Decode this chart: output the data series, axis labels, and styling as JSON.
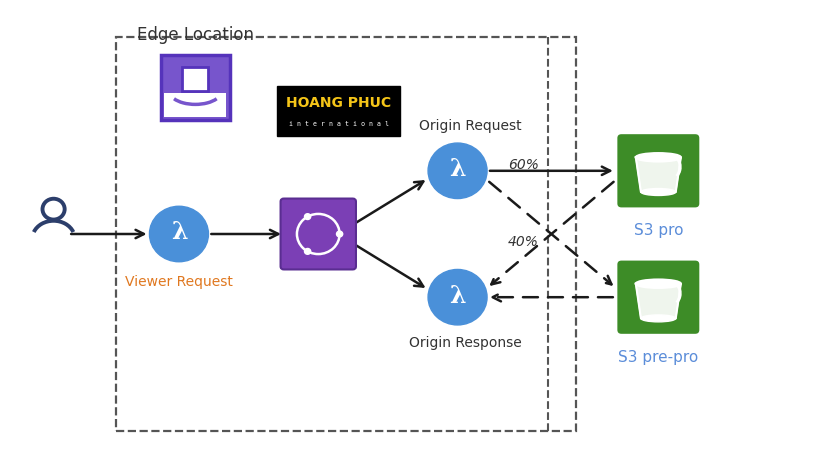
{
  "bg_color": "#ffffff",
  "fig_width": 8.25,
  "fig_height": 4.68,
  "dpi": 100,
  "edge_location_label": "Edge Location",
  "viewer_request_label": "Viewer Request",
  "origin_request_label": "Origin Request",
  "origin_response_label": "Origin Response",
  "s3_pro_label": "S3 pro",
  "s3_prepro_label": "S3 pre-pro",
  "pct_60": "60%",
  "pct_40": "40%",
  "hoang_phuc_line1": "HOANG PHUC",
  "hoang_phuc_line2": "i n t e r n a t i o n a l",
  "lambda_color": "#4a90d9",
  "s3_green": "#3d8c27",
  "cloudfront_purple": "#7b3fb5",
  "edge_purple": "#5533bb",
  "arrow_color": "#1a1a1a",
  "dashed_box_color": "#555555",
  "person_color": "#2c3e6b",
  "label_blue": "#5b8dd9",
  "label_dark": "#333333",
  "viewer_req_color": "#e07820"
}
